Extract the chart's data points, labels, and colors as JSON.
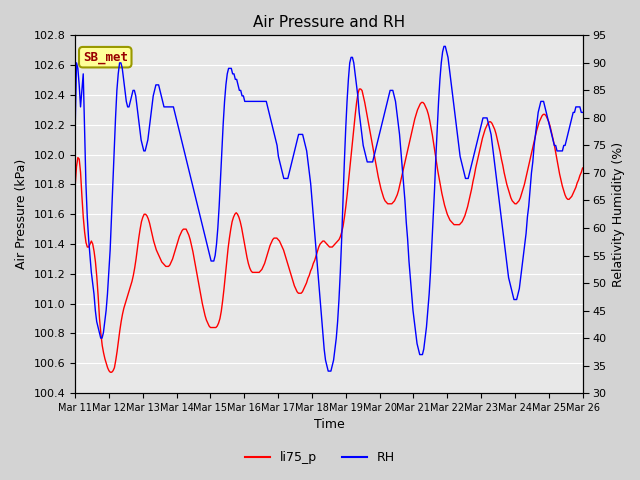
{
  "title": "Air Pressure and RH",
  "xlabel": "Time",
  "ylabel_left": "Air Pressure (kPa)",
  "ylabel_right": "Relativity Humidity (%)",
  "ylim_left": [
    100.4,
    102.8
  ],
  "ylim_right": [
    30,
    95
  ],
  "yticks_left": [
    100.4,
    100.6,
    100.8,
    101.0,
    101.2,
    101.4,
    101.6,
    101.8,
    102.0,
    102.2,
    102.4,
    102.6,
    102.8
  ],
  "yticks_right": [
    30,
    35,
    40,
    45,
    50,
    55,
    60,
    65,
    70,
    75,
    80,
    85,
    90,
    95
  ],
  "xtick_labels": [
    "Mar 11",
    "Mar 12",
    "Mar 13",
    "Mar 14",
    "Mar 15",
    "Mar 16",
    "Mar 17",
    "Mar 18",
    "Mar 19",
    "Mar 20",
    "Mar 21",
    "Mar 22",
    "Mar 23",
    "Mar 24",
    "Mar 25",
    "Mar 26"
  ],
  "color_red": "#ff0000",
  "color_blue": "#0000ff",
  "legend_label_red": "li75_p",
  "legend_label_blue": "RH",
  "annotation_text": "SB_met",
  "annotation_box_color": "#ffff99",
  "annotation_border_color": "#999900",
  "annotation_text_color": "#990000",
  "background_color": "#d3d3d3",
  "plot_bg_color": "#e8e8e8",
  "pressure_data": [
    101.79,
    101.92,
    101.98,
    101.97,
    101.88,
    101.72,
    101.58,
    101.48,
    101.41,
    101.38,
    101.38,
    101.4,
    101.42,
    101.4,
    101.35,
    101.28,
    101.18,
    101.05,
    100.9,
    100.8,
    100.72,
    100.67,
    100.63,
    100.6,
    100.57,
    100.55,
    100.54,
    100.54,
    100.55,
    100.57,
    100.62,
    100.68,
    100.75,
    100.82,
    100.88,
    100.93,
    100.97,
    101.0,
    101.03,
    101.06,
    101.09,
    101.12,
    101.15,
    101.19,
    101.24,
    101.3,
    101.37,
    101.44,
    101.5,
    101.55,
    101.58,
    101.6,
    101.6,
    101.59,
    101.57,
    101.54,
    101.5,
    101.46,
    101.42,
    101.39,
    101.36,
    101.34,
    101.32,
    101.3,
    101.28,
    101.27,
    101.26,
    101.25,
    101.25,
    101.25,
    101.26,
    101.28,
    101.3,
    101.33,
    101.36,
    101.39,
    101.42,
    101.45,
    101.47,
    101.49,
    101.5,
    101.5,
    101.5,
    101.48,
    101.46,
    101.43,
    101.39,
    101.35,
    101.3,
    101.25,
    101.2,
    101.15,
    101.1,
    101.05,
    101.0,
    100.96,
    100.92,
    100.89,
    100.87,
    100.85,
    100.84,
    100.84,
    100.84,
    100.84,
    100.84,
    100.85,
    100.87,
    100.9,
    100.95,
    101.02,
    101.1,
    101.19,
    101.28,
    101.37,
    101.44,
    101.5,
    101.55,
    101.58,
    101.6,
    101.61,
    101.6,
    101.58,
    101.55,
    101.51,
    101.46,
    101.41,
    101.36,
    101.31,
    101.27,
    101.24,
    101.22,
    101.21,
    101.21,
    101.21,
    101.21,
    101.21,
    101.21,
    101.22,
    101.23,
    101.25,
    101.27,
    101.3,
    101.33,
    101.36,
    101.39,
    101.41,
    101.43,
    101.44,
    101.44,
    101.44,
    101.43,
    101.42,
    101.4,
    101.38,
    101.36,
    101.33,
    101.3,
    101.27,
    101.24,
    101.21,
    101.18,
    101.15,
    101.12,
    101.1,
    101.08,
    101.07,
    101.07,
    101.07,
    101.08,
    101.1,
    101.12,
    101.14,
    101.17,
    101.19,
    101.22,
    101.24,
    101.27,
    101.29,
    101.32,
    101.35,
    101.38,
    101.4,
    101.41,
    101.42,
    101.42,
    101.41,
    101.4,
    101.39,
    101.38,
    101.38,
    101.38,
    101.39,
    101.4,
    101.41,
    101.42,
    101.43,
    101.45,
    101.48,
    101.52,
    101.58,
    101.65,
    101.73,
    101.82,
    101.91,
    102.0,
    102.09,
    102.18,
    102.27,
    102.35,
    102.41,
    102.44,
    102.44,
    102.43,
    102.39,
    102.35,
    102.3,
    102.25,
    102.2,
    102.15,
    102.1,
    102.05,
    102.0,
    101.95,
    101.9,
    101.85,
    101.81,
    101.77,
    101.74,
    101.71,
    101.69,
    101.68,
    101.67,
    101.67,
    101.67,
    101.67,
    101.68,
    101.69,
    101.71,
    101.73,
    101.76,
    101.8,
    101.84,
    101.88,
    101.92,
    101.96,
    102.0,
    102.04,
    102.08,
    102.12,
    102.16,
    102.2,
    102.24,
    102.27,
    102.3,
    102.32,
    102.34,
    102.35,
    102.35,
    102.34,
    102.32,
    102.3,
    102.27,
    102.23,
    102.18,
    102.13,
    102.07,
    102.01,
    101.95,
    101.89,
    101.84,
    101.79,
    101.74,
    101.7,
    101.66,
    101.63,
    101.6,
    101.58,
    101.56,
    101.55,
    101.54,
    101.53,
    101.53,
    101.53,
    101.53,
    101.53,
    101.54,
    101.55,
    101.57,
    101.59,
    101.62,
    101.65,
    101.69,
    101.73,
    101.77,
    101.82,
    101.86,
    101.91,
    101.95,
    101.99,
    102.03,
    102.07,
    102.11,
    102.14,
    102.17,
    102.19,
    102.21,
    102.22,
    102.22,
    102.21,
    102.19,
    102.17,
    102.14,
    102.1,
    102.06,
    102.02,
    101.97,
    101.93,
    101.88,
    101.84,
    101.8,
    101.77,
    101.74,
    101.71,
    101.69,
    101.68,
    101.67,
    101.67,
    101.68,
    101.69,
    101.71,
    101.74,
    101.77,
    101.8,
    101.84,
    101.88,
    101.92,
    101.96,
    102.0,
    102.04,
    102.08,
    102.12,
    102.16,
    102.19,
    102.22,
    102.24,
    102.26,
    102.27,
    102.27,
    102.26,
    102.24,
    102.22,
    102.19,
    102.15,
    102.11,
    102.07,
    102.02,
    101.97,
    101.92,
    101.87,
    101.83,
    101.79,
    101.76,
    101.73,
    101.71,
    101.7,
    101.7,
    101.71,
    101.72,
    101.74,
    101.76,
    101.78,
    101.81,
    101.83,
    101.86,
    101.88,
    101.91
  ],
  "rh_data": [
    78,
    90,
    89,
    86,
    82,
    85,
    88,
    78,
    68,
    62,
    58,
    55,
    52,
    50,
    48,
    45,
    43,
    42,
    41,
    40,
    40,
    41,
    43,
    45,
    48,
    52,
    56,
    62,
    68,
    74,
    80,
    85,
    88,
    90,
    90,
    89,
    87,
    85,
    83,
    82,
    82,
    83,
    84,
    85,
    85,
    84,
    82,
    80,
    78,
    76,
    75,
    74,
    74,
    75,
    76,
    78,
    80,
    82,
    84,
    85,
    86,
    86,
    86,
    85,
    84,
    83,
    82,
    82,
    82,
    82,
    82,
    82,
    82,
    82,
    81,
    80,
    79,
    78,
    77,
    76,
    75,
    74,
    73,
    72,
    71,
    70,
    69,
    68,
    67,
    66,
    65,
    64,
    63,
    62,
    61,
    60,
    59,
    58,
    57,
    56,
    55,
    54,
    54,
    54,
    55,
    57,
    60,
    64,
    69,
    74,
    79,
    83,
    86,
    88,
    89,
    89,
    89,
    88,
    88,
    87,
    87,
    86,
    85,
    85,
    84,
    84,
    83,
    83,
    83,
    83,
    83,
    83,
    83,
    83,
    83,
    83,
    83,
    83,
    83,
    83,
    83,
    83,
    83,
    82,
    81,
    80,
    79,
    78,
    77,
    76,
    75,
    73,
    72,
    71,
    70,
    69,
    69,
    69,
    69,
    70,
    71,
    72,
    73,
    74,
    75,
    76,
    77,
    77,
    77,
    77,
    76,
    75,
    74,
    72,
    70,
    68,
    65,
    62,
    59,
    56,
    53,
    50,
    47,
    44,
    41,
    38,
    36,
    35,
    34,
    34,
    34,
    35,
    36,
    38,
    40,
    43,
    47,
    52,
    58,
    65,
    72,
    78,
    83,
    87,
    90,
    91,
    91,
    90,
    88,
    86,
    84,
    81,
    79,
    77,
    75,
    74,
    73,
    72,
    72,
    72,
    72,
    72,
    73,
    74,
    75,
    76,
    77,
    78,
    79,
    80,
    81,
    82,
    83,
    84,
    85,
    85,
    85,
    84,
    83,
    81,
    79,
    77,
    74,
    71,
    68,
    65,
    61,
    58,
    54,
    51,
    48,
    45,
    43,
    41,
    39,
    38,
    37,
    37,
    37,
    38,
    40,
    42,
    45,
    48,
    52,
    57,
    62,
    67,
    73,
    78,
    83,
    87,
    90,
    92,
    93,
    93,
    92,
    91,
    89,
    87,
    85,
    83,
    81,
    79,
    77,
    75,
    73,
    72,
    71,
    70,
    69,
    69,
    69,
    70,
    71,
    72,
    73,
    74,
    75,
    76,
    77,
    78,
    79,
    80,
    80,
    80,
    80,
    79,
    78,
    77,
    75,
    73,
    71,
    69,
    67,
    65,
    63,
    61,
    59,
    57,
    55,
    53,
    51,
    50,
    49,
    48,
    47,
    47,
    47,
    48,
    49,
    51,
    53,
    55,
    57,
    59,
    62,
    64,
    67,
    70,
    72,
    75,
    77,
    79,
    81,
    82,
    83,
    83,
    83,
    82,
    81,
    80,
    79,
    78,
    77,
    76,
    75,
    75,
    74,
    74,
    74,
    74,
    74,
    75,
    75,
    76,
    77,
    78,
    79,
    80,
    81,
    81,
    82,
    82,
    82,
    82,
    81,
    81
  ]
}
